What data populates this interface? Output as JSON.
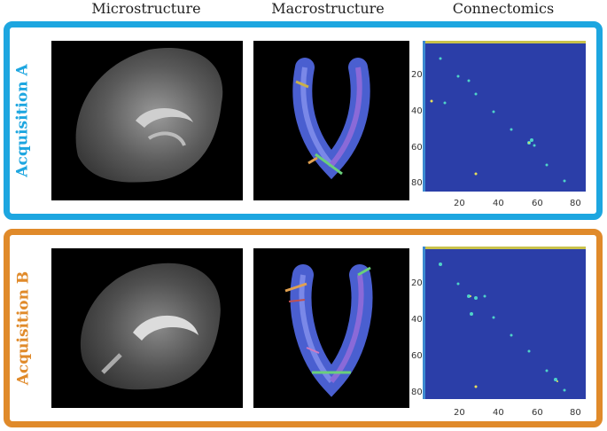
{
  "columns": {
    "micro": "Microstructure",
    "macro": "Macrostructure",
    "connect": "Connectomics"
  },
  "rows": [
    {
      "label": "Acquisition A",
      "color": "#1da6e0"
    },
    {
      "label": "Acquisition B",
      "color": "#e08a2a"
    }
  ],
  "matrix": {
    "ticks": [
      "20",
      "40",
      "60",
      "80"
    ],
    "background": "#2b3ea8"
  }
}
